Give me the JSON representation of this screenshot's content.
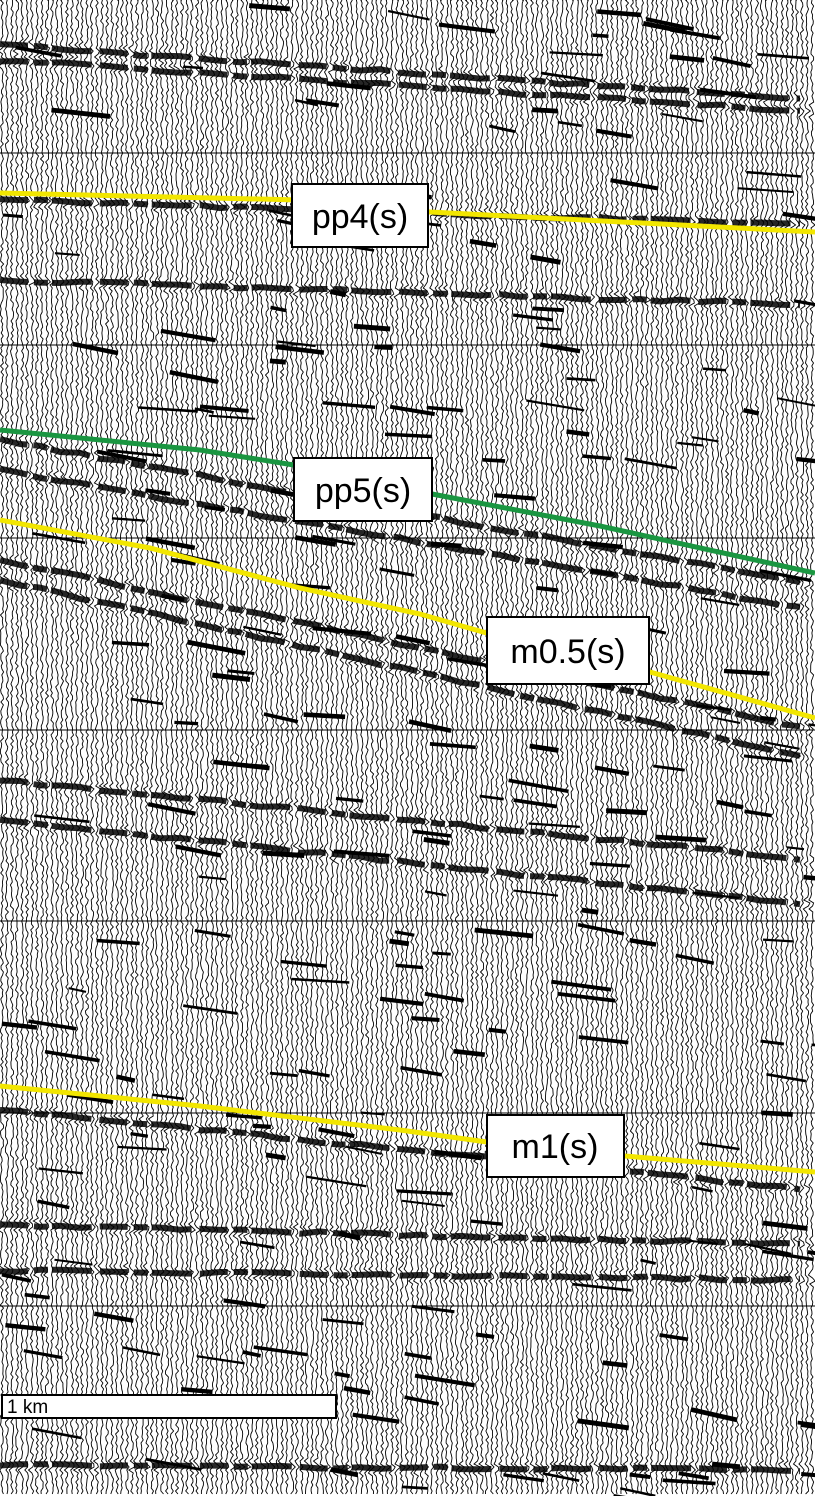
{
  "horizons": [
    {
      "key": "pp4",
      "label": "pp4(s)",
      "color": "#f2e600"
    },
    {
      "key": "pp5",
      "label": "pp5(s)",
      "color": "#1a9641"
    },
    {
      "key": "m05",
      "label": "m0.5(s)",
      "color": "#f2e600"
    },
    {
      "key": "m1",
      "label": "m1(s)",
      "color": "#f2e600"
    }
  ],
  "scale_bar": {
    "label": "1 km"
  },
  "colors": {
    "trace": "#000000",
    "background": "#ffffff",
    "gridline": "#000000"
  }
}
